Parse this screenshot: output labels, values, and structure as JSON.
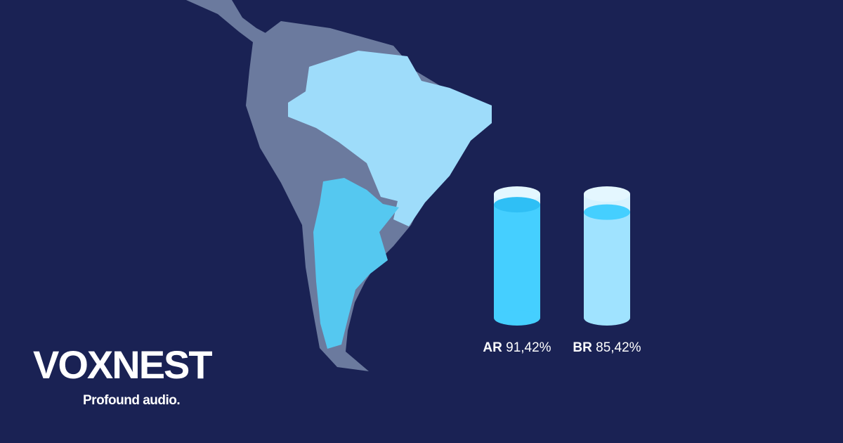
{
  "brand": {
    "name": "VOXNEST",
    "tagline": "Profound audio."
  },
  "chart_data": {
    "type": "cylinder",
    "categories": [
      "AR",
      "BR"
    ],
    "values": [
      91.42,
      85.42
    ],
    "value_labels": [
      "91,42%",
      "85,42%"
    ],
    "colors": [
      "#45cfff",
      "#a0e3ff"
    ]
  }
}
